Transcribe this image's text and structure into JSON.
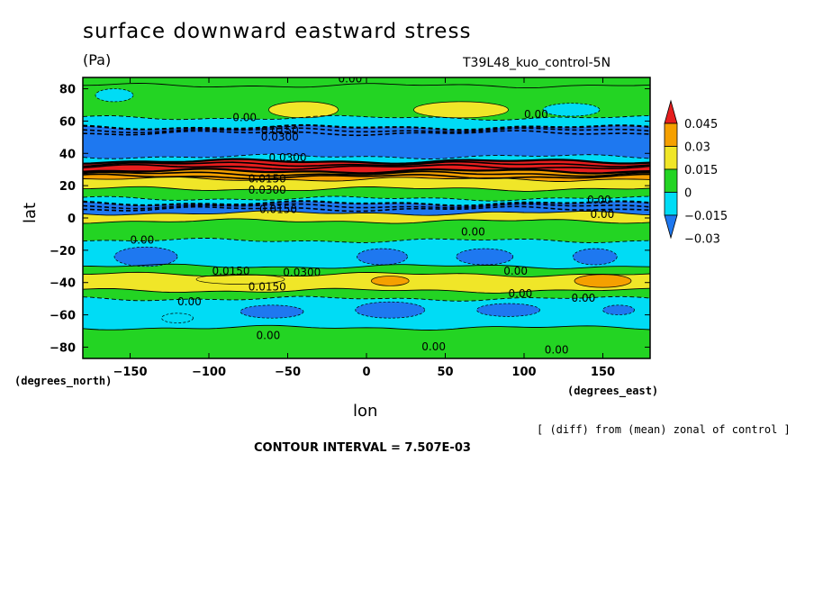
{
  "chart_data": {
    "type": "heatmap",
    "title": "surface downward eastward stress",
    "units": "(Pa)",
    "run_label": "T39L48_kuo_control-5N",
    "xlabel": "lon",
    "ylabel": "lat",
    "x_units": "(degrees_east)",
    "y_units": "(degrees_north)",
    "xlim": [
      -180,
      180
    ],
    "ylim": [
      -87,
      87
    ],
    "x_ticks": [
      -150,
      -100,
      -50,
      0,
      50,
      100,
      150
    ],
    "x_tick_labels": [
      "−150",
      "−100",
      "−50",
      "0",
      "50",
      "100",
      "150"
    ],
    "y_ticks": [
      80,
      60,
      40,
      20,
      0,
      -20,
      -40,
      -60,
      -80
    ],
    "y_tick_labels": [
      "80",
      "60",
      "40",
      "20",
      "0",
      "−20",
      "−40",
      "−60",
      "−80"
    ],
    "colorbar": {
      "levels": [
        -0.03,
        -0.015,
        0,
        0.015,
        0.03,
        0.045
      ],
      "labels": [
        "−0.03",
        "−0.015",
        "0",
        "0.015",
        "0.03",
        "0.045"
      ],
      "colors": [
        "#1e78f0",
        "#00dcf5",
        "#23d423",
        "#f0e628",
        "#f5a000",
        "#e61e1e"
      ]
    },
    "bands": [
      {
        "lat_top": 87,
        "lat_bottom": 82,
        "value": 0.0,
        "color": "#23d423"
      },
      {
        "lat_top": 82,
        "lat_bottom": 62,
        "value": 0.005,
        "color": "#23d423"
      },
      {
        "lat_top": 62,
        "lat_bottom": 56,
        "value": -0.01,
        "color": "#00dcf5"
      },
      {
        "lat_top": 56,
        "lat_bottom": 38,
        "value": -0.035,
        "color": "#1e78f0"
      },
      {
        "lat_top": 38,
        "lat_bottom": 35,
        "value": -0.01,
        "color": "#00dcf5"
      },
      {
        "lat_top": 35,
        "lat_bottom": 29,
        "value": 0.05,
        "color": "#e61e1e"
      },
      {
        "lat_top": 29,
        "lat_bottom": 24,
        "value": 0.035,
        "color": "#f5a000"
      },
      {
        "lat_top": 24,
        "lat_bottom": 18,
        "value": 0.02,
        "color": "#f0e628"
      },
      {
        "lat_top": 18,
        "lat_bottom": 12,
        "value": 0.005,
        "color": "#23d423"
      },
      {
        "lat_top": 12,
        "lat_bottom": 9,
        "value": -0.01,
        "color": "#00dcf5"
      },
      {
        "lat_top": 9,
        "lat_bottom": 3,
        "value": -0.035,
        "color": "#1e78f0"
      },
      {
        "lat_top": 3,
        "lat_bottom": -2,
        "value": 0.02,
        "color": "#f0e628"
      },
      {
        "lat_top": -2,
        "lat_bottom": -14,
        "value": 0.005,
        "color": "#23d423"
      },
      {
        "lat_top": -14,
        "lat_bottom": -30,
        "value": -0.01,
        "color": "#00dcf5"
      },
      {
        "lat_top": -30,
        "lat_bottom": -35,
        "value": 0.005,
        "color": "#23d423"
      },
      {
        "lat_top": -35,
        "lat_bottom": -45,
        "value": 0.02,
        "color": "#f0e628"
      },
      {
        "lat_top": -45,
        "lat_bottom": -50,
        "value": 0.005,
        "color": "#23d423"
      },
      {
        "lat_top": -50,
        "lat_bottom": -68,
        "value": -0.01,
        "color": "#00dcf5"
      },
      {
        "lat_top": -68,
        "lat_bottom": -87,
        "value": 0.005,
        "color": "#23d423"
      }
    ],
    "blobs": [
      {
        "lon": -160,
        "lat": 76,
        "rlon": 12,
        "rlat": 4,
        "color": "#00dcf5"
      },
      {
        "lon": -40,
        "lat": 67,
        "rlon": 22,
        "rlat": 5,
        "color": "#f0e628"
      },
      {
        "lon": 60,
        "lat": 67,
        "rlon": 30,
        "rlat": 5,
        "color": "#f0e628"
      },
      {
        "lon": 130,
        "lat": 67,
        "rlon": 18,
        "rlat": 4,
        "color": "#00dcf5"
      },
      {
        "lon": -140,
        "lat": -24,
        "rlon": 20,
        "rlat": 6,
        "color": "#1e78f0"
      },
      {
        "lon": 10,
        "lat": -24,
        "rlon": 16,
        "rlat": 5,
        "color": "#1e78f0"
      },
      {
        "lon": 75,
        "lat": -24,
        "rlon": 18,
        "rlat": 5,
        "color": "#1e78f0"
      },
      {
        "lon": 145,
        "lat": -24,
        "rlon": 14,
        "rlat": 5,
        "color": "#1e78f0"
      },
      {
        "lon": -80,
        "lat": -38,
        "rlon": 28,
        "rlat": 3,
        "color": "#f0e628"
      },
      {
        "lon": 15,
        "lat": -39,
        "rlon": 12,
        "rlat": 3,
        "color": "#f5a000"
      },
      {
        "lon": 150,
        "lat": -39,
        "rlon": 18,
        "rlat": 4,
        "color": "#f5a000"
      },
      {
        "lon": -60,
        "lat": -58,
        "rlon": 20,
        "rlat": 4,
        "color": "#1e78f0"
      },
      {
        "lon": 15,
        "lat": -57,
        "rlon": 22,
        "rlat": 5,
        "color": "#1e78f0"
      },
      {
        "lon": 90,
        "lat": -57,
        "rlon": 20,
        "rlat": 4,
        "color": "#1e78f0"
      },
      {
        "lon": 160,
        "lat": -57,
        "rlon": 10,
        "rlat": 3,
        "color": "#1e78f0"
      },
      {
        "lon": -120,
        "lat": -62,
        "rlon": 10,
        "rlat": 3,
        "color": "#00dcf5"
      }
    ],
    "contour_labels": [
      {
        "text": "0.00",
        "lon": -18,
        "lat": 84
      },
      {
        "text": "0.00",
        "lon": -85,
        "lat": 60
      },
      {
        "text": "0.0300",
        "lon": -67,
        "lat": 48
      },
      {
        "text": "0.0150",
        "lon": -67,
        "lat": 52
      },
      {
        "text": "0.0300",
        "lon": -62,
        "lat": 35
      },
      {
        "text": "0.0150",
        "lon": -75,
        "lat": 22
      },
      {
        "text": "0.0300",
        "lon": -75,
        "lat": 15
      },
      {
        "text": "0.0150",
        "lon": -68,
        "lat": 3
      },
      {
        "text": "0.00",
        "lon": 100,
        "lat": 62
      },
      {
        "text": "0.00",
        "lon": 140,
        "lat": 9
      },
      {
        "text": "0.00",
        "lon": 142,
        "lat": 0
      },
      {
        "text": "0.00",
        "lon": -150,
        "lat": -16
      },
      {
        "text": "0.00",
        "lon": 60,
        "lat": -11
      },
      {
        "text": "0.0150",
        "lon": -98,
        "lat": -35
      },
      {
        "text": "0.0300",
        "lon": -53,
        "lat": -36
      },
      {
        "text": "0.0150",
        "lon": -75,
        "lat": -45
      },
      {
        "text": "0.00",
        "lon": 87,
        "lat": -35
      },
      {
        "text": "0.00",
        "lon": 90,
        "lat": -49
      },
      {
        "text": "0.00",
        "lon": 130,
        "lat": -52
      },
      {
        "text": "0.00",
        "lon": -120,
        "lat": -54
      },
      {
        "text": "0.00",
        "lon": -70,
        "lat": -75
      },
      {
        "text": "0.00",
        "lon": 35,
        "lat": -82
      },
      {
        "text": "0.00",
        "lon": 113,
        "lat": -84
      }
    ]
  },
  "labels": {
    "title": "surface downward eastward stress",
    "units": "(Pa)",
    "run": "T39L48_kuo_control-5N",
    "ylabel": "lat",
    "xlabel": "lon",
    "y_units": "(degrees_north)",
    "x_units": "(degrees_east)",
    "note": "[ (diff) from (mean) zonal of control ]",
    "interval": "CONTOUR INTERVAL = 7.507E-03"
  }
}
